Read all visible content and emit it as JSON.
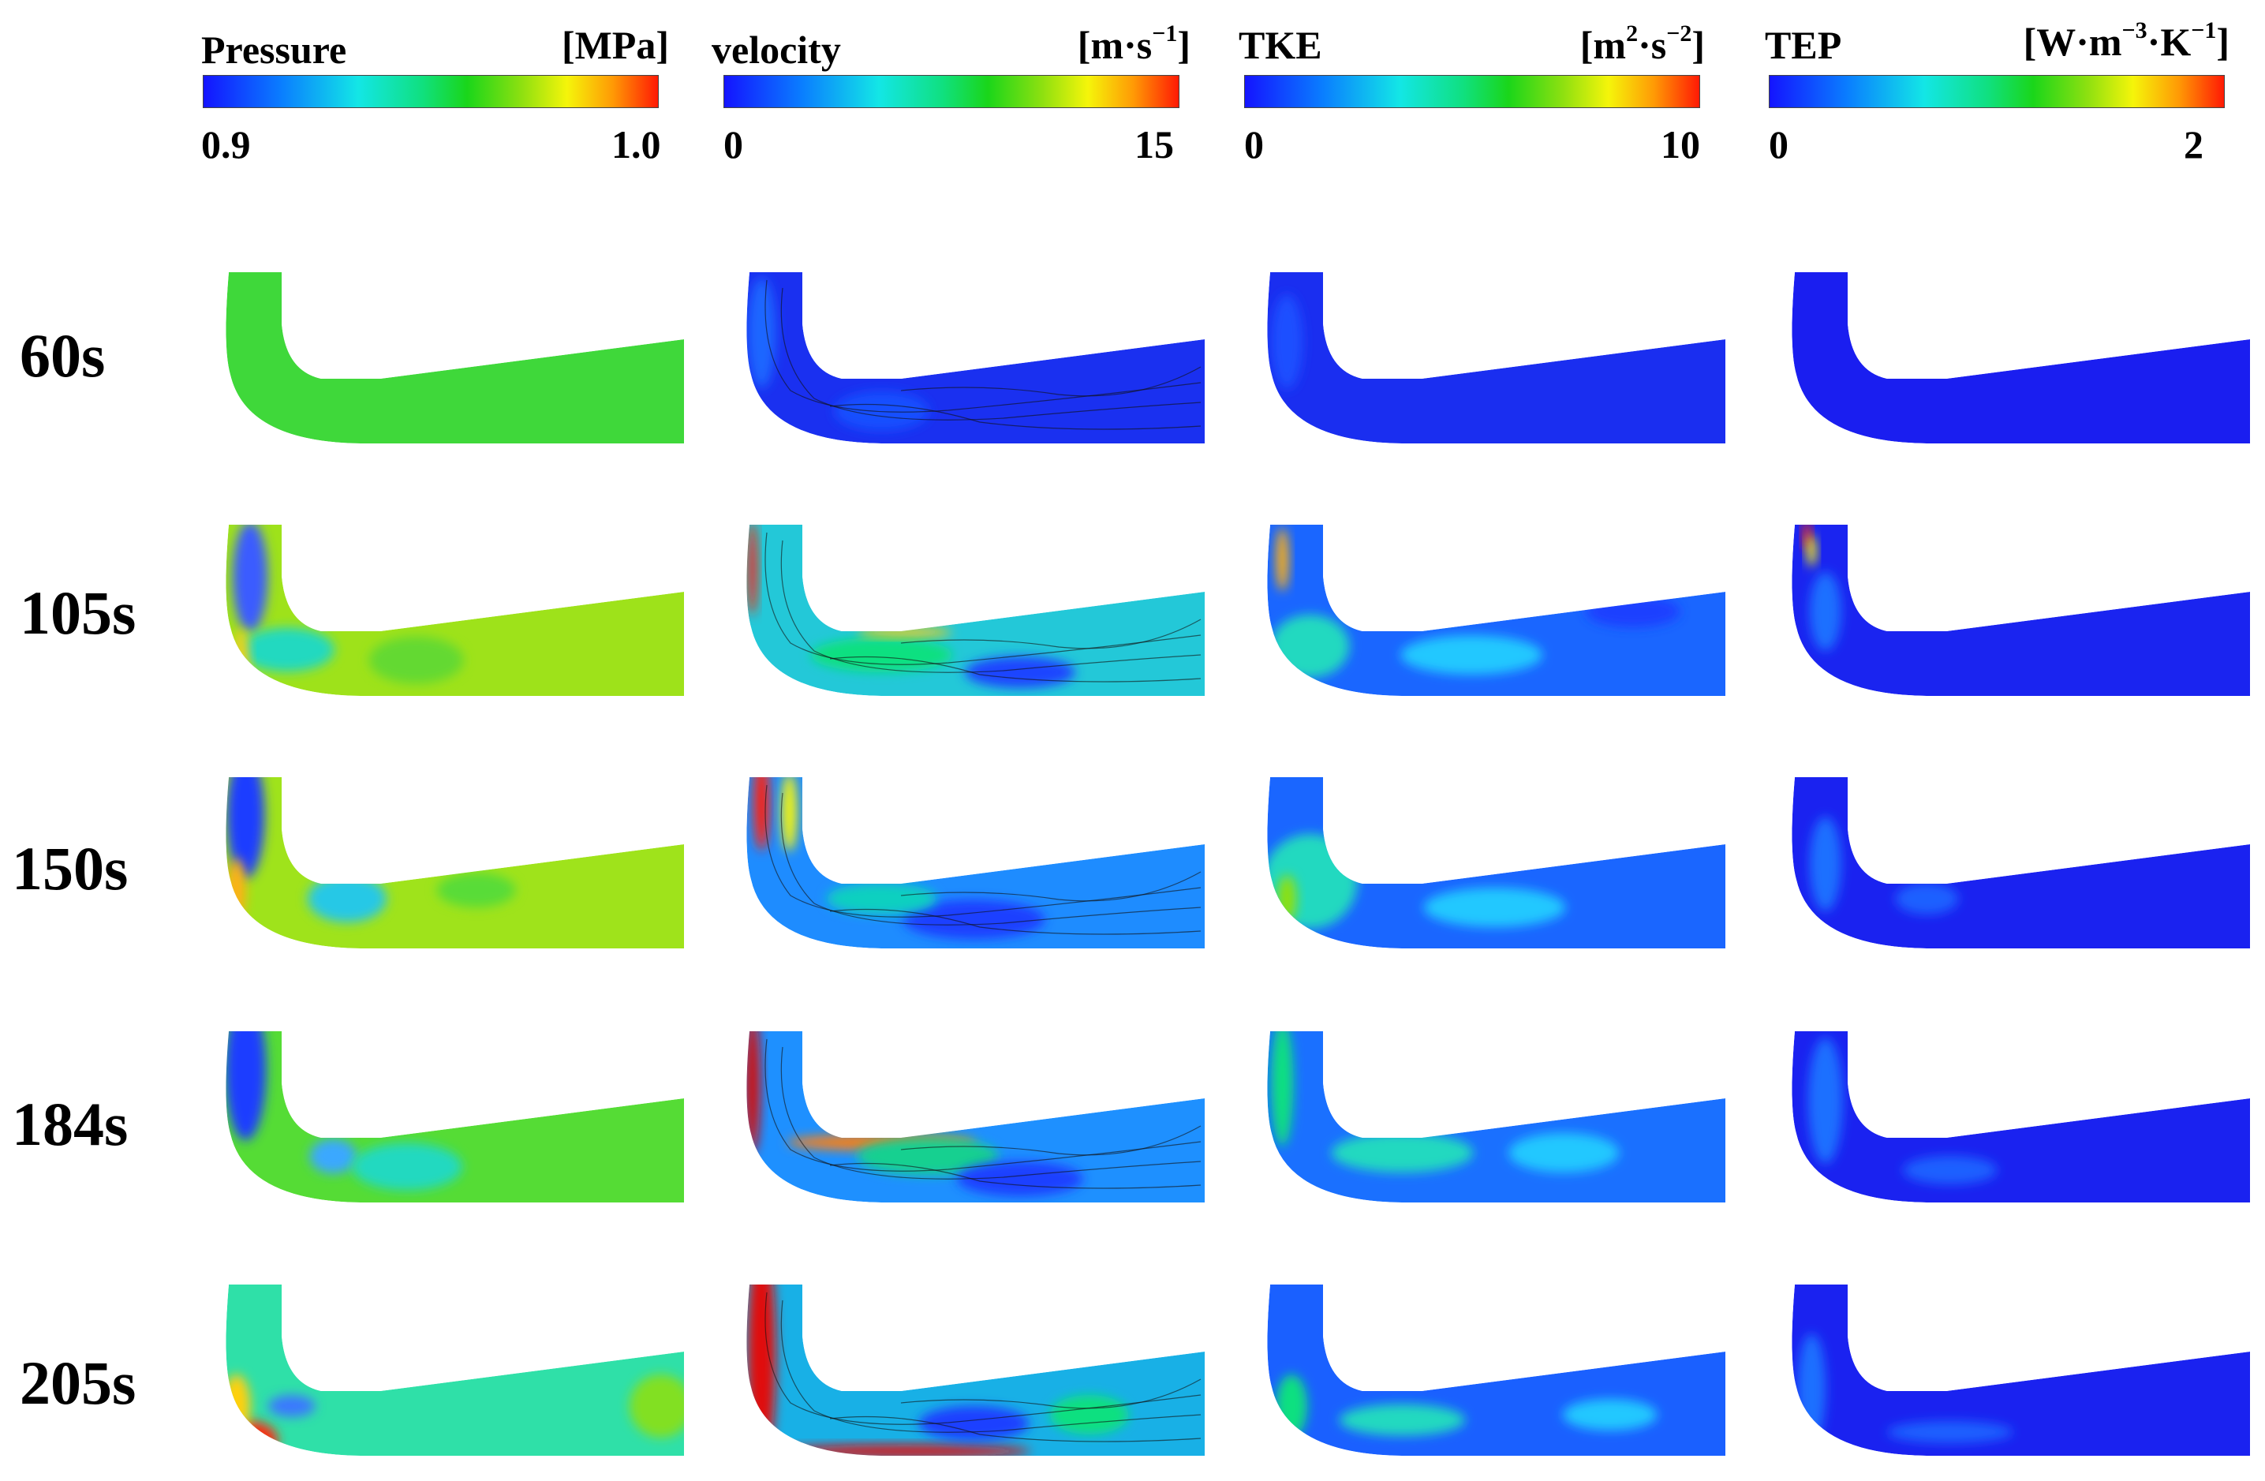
{
  "legends": [
    {
      "title": "Pressure",
      "unit_base": "[MPa]",
      "unit_sups": [],
      "min": "0.9",
      "max": "1.0"
    },
    {
      "title": "velocity",
      "unit_base": "[m·s",
      "unit_sups": [
        "−1"
      ],
      "unit_parts": [
        "]"
      ],
      "min": "0",
      "max": "15"
    },
    {
      "title": "TKE",
      "unit_base": "[m",
      "unit_sups": [
        "2",
        "−2"
      ],
      "unit_parts": [
        "·s",
        "]"
      ],
      "min": "0",
      "max": "10"
    },
    {
      "title": "TEP",
      "unit_base": "[W·m",
      "unit_sups": [
        "−3",
        "−1"
      ],
      "unit_parts": [
        "·K",
        "]"
      ],
      "min": "0",
      "max": "2"
    }
  ],
  "rows": [
    {
      "label": "60s"
    },
    {
      "label": "105s"
    },
    {
      "label": "150s"
    },
    {
      "label": "184s"
    },
    {
      "label": "205s"
    }
  ],
  "colormap": [
    "#1414ff",
    "#0a7dff",
    "#13e6e6",
    "#10e080",
    "#1ad61a",
    "#8ee010",
    "#f5f50a",
    "#ff9a05",
    "#ff1a05"
  ],
  "fields": {
    "pressure": [
      {
        "base": "#3fd83a",
        "spots": []
      },
      {
        "base": "#9ee21a",
        "spots": [
          [
            "#3b5cff",
            0.06,
            0.3,
            22,
            70
          ],
          [
            "#20d9c0",
            0.14,
            0.72,
            60,
            28
          ],
          [
            "#63d930",
            0.42,
            0.78,
            60,
            30
          ],
          [
            "#f3d21a",
            0.04,
            0.78,
            10,
            40
          ]
        ]
      },
      {
        "base": "#9fe31b",
        "spots": [
          [
            "#1e3cff",
            0.05,
            0.22,
            24,
            80
          ],
          [
            "#28c8e6",
            0.27,
            0.7,
            50,
            30
          ],
          [
            "#ffb014",
            0.03,
            0.65,
            12,
            40
          ],
          [
            "#58dc38",
            0.55,
            0.65,
            50,
            22
          ]
        ]
      },
      {
        "base": "#55dc35",
        "spots": [
          [
            "#1e3cff",
            0.05,
            0.22,
            26,
            90
          ],
          [
            "#3aa8ff",
            0.24,
            0.72,
            30,
            22
          ],
          [
            "#20d9c0",
            0.4,
            0.78,
            70,
            30
          ]
        ]
      },
      {
        "base": "#2fe0a8",
        "spots": [
          [
            "#ff2a10",
            0.06,
            0.9,
            35,
            25
          ],
          [
            "#ffd010",
            0.03,
            0.7,
            18,
            40
          ],
          [
            "#3a78ff",
            0.15,
            0.7,
            30,
            14
          ],
          [
            "#82e020",
            0.95,
            0.7,
            40,
            40
          ]
        ]
      }
    ],
    "velocity": [
      {
        "base": "#1a30f0",
        "spots": [
          [
            "#1f66ff",
            0.04,
            0.35,
            18,
            70
          ],
          [
            "#1450ff",
            0.3,
            0.8,
            60,
            25
          ]
        ]
      },
      {
        "base": "#23c8d8",
        "spots": [
          [
            "#ff2010",
            0.02,
            0.25,
            6,
            60
          ],
          [
            "#10e080",
            0.3,
            0.75,
            90,
            22
          ],
          [
            "#1e44ff",
            0.6,
            0.85,
            70,
            20
          ],
          [
            "#ffd010",
            0.35,
            0.62,
            60,
            6
          ]
        ]
      },
      {
        "base": "#1e8cff",
        "spots": [
          [
            "#ff2010",
            0.04,
            0.15,
            10,
            60
          ],
          [
            "#f5f50a",
            0.1,
            0.2,
            10,
            50
          ],
          [
            "#1a40ff",
            0.5,
            0.82,
            90,
            25
          ],
          [
            "#10d0c0",
            0.3,
            0.7,
            70,
            20
          ]
        ]
      },
      {
        "base": "#1e90ff",
        "spots": [
          [
            "#d01010",
            0.02,
            0.3,
            10,
            90
          ],
          [
            "#ff8010",
            0.3,
            0.64,
            120,
            10
          ],
          [
            "#12d090",
            0.4,
            0.72,
            90,
            24
          ],
          [
            "#1a40ff",
            0.6,
            0.85,
            80,
            22
          ]
        ]
      },
      {
        "base": "#18b0e6",
        "spots": [
          [
            "#e01010",
            0.04,
            0.4,
            18,
            150
          ],
          [
            "#e01010",
            0.35,
            0.96,
            160,
            8
          ],
          [
            "#1a40ff",
            0.5,
            0.8,
            70,
            22
          ],
          [
            "#10e080",
            0.75,
            0.75,
            50,
            25
          ]
        ]
      }
    ],
    "tke": [
      {
        "base": "#1a2ef0",
        "spots": [
          [
            "#1e50ff",
            0.05,
            0.4,
            20,
            60
          ]
        ]
      },
      {
        "base": "#1a66ff",
        "spots": [
          [
            "#ffb010",
            0.04,
            0.2,
            8,
            40
          ],
          [
            "#20d9c0",
            0.1,
            0.7,
            50,
            40
          ],
          [
            "#20c8ff",
            0.45,
            0.75,
            90,
            25
          ],
          [
            "#1a40ff",
            0.8,
            0.5,
            60,
            20
          ]
        ]
      },
      {
        "base": "#1a66ff",
        "spots": [
          [
            "#20d9c0",
            0.1,
            0.6,
            60,
            60
          ],
          [
            "#8ee010",
            0.05,
            0.7,
            12,
            30
          ],
          [
            "#20c8ff",
            0.5,
            0.75,
            90,
            25
          ]
        ]
      },
      {
        "base": "#1a70ff",
        "spots": [
          [
            "#10e080",
            0.04,
            0.3,
            14,
            80
          ],
          [
            "#20d9c0",
            0.3,
            0.7,
            90,
            25
          ],
          [
            "#20c8ff",
            0.65,
            0.7,
            70,
            25
          ]
        ]
      },
      {
        "base": "#1a60ff",
        "spots": [
          [
            "#10e080",
            0.06,
            0.7,
            20,
            40
          ],
          [
            "#20d9c0",
            0.3,
            0.78,
            80,
            20
          ],
          [
            "#20c8ff",
            0.75,
            0.75,
            60,
            20
          ]
        ]
      }
    ],
    "tep": [
      {
        "base": "#1a1ef0",
        "spots": []
      },
      {
        "base": "#1a24f0",
        "spots": [
          [
            "#ff2010",
            0.04,
            0.06,
            5,
            20
          ],
          [
            "#f5f50a",
            0.05,
            0.15,
            6,
            20
          ],
          [
            "#1f70ff",
            0.08,
            0.5,
            20,
            50
          ]
        ]
      },
      {
        "base": "#1a22f0",
        "spots": [
          [
            "#1f70ff",
            0.08,
            0.5,
            20,
            60
          ],
          [
            "#1f60ff",
            0.3,
            0.7,
            40,
            20
          ]
        ]
      },
      {
        "base": "#1a22f0",
        "spots": [
          [
            "#1f70ff",
            0.08,
            0.4,
            22,
            80
          ],
          [
            "#1f60ff",
            0.35,
            0.8,
            60,
            18
          ]
        ]
      },
      {
        "base": "#1a22f0",
        "spots": [
          [
            "#1f70ff",
            0.05,
            0.6,
            18,
            70
          ],
          [
            "#1f60ff",
            0.35,
            0.85,
            80,
            14
          ]
        ]
      }
    ]
  }
}
